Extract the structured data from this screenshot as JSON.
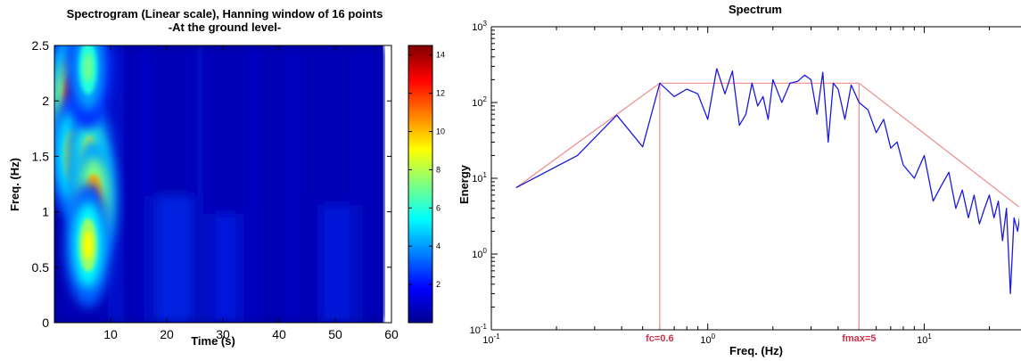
{
  "chart_data": [
    {
      "type": "heatmap",
      "title": "Spectrogram (Linear scale), Hanning window of 16 points",
      "subtitle": "-At the ground level-",
      "xlabel": "Time (s)",
      "ylabel": "Freq. (Hz)",
      "xlim": [
        0,
        60
      ],
      "ylim": [
        0,
        2.5
      ],
      "data_time_range": [
        1.5,
        58.5
      ],
      "x_ticks": [
        "10",
        "20",
        "30",
        "40",
        "50",
        "60"
      ],
      "x_tick_values": [
        10,
        20,
        30,
        40,
        50,
        60
      ],
      "y_ticks": [
        "0",
        "0.5",
        "1",
        "1.5",
        "2",
        "2.5"
      ],
      "y_tick_values": [
        0,
        0.5,
        1,
        1.5,
        2,
        2.5
      ],
      "colorbar": {
        "colormap": "jet",
        "range": [
          0,
          14.5
        ],
        "ticks": [
          "2",
          "4",
          "6",
          "8",
          "10",
          "12",
          "14"
        ],
        "tick_values": [
          2,
          4,
          6,
          8,
          10,
          12,
          14
        ]
      },
      "hotspots": [
        {
          "t": 2.5,
          "f": 2.2,
          "value": 6
        },
        {
          "t": 3.2,
          "f": 2.0,
          "value": 13.5
        },
        {
          "t": 3.2,
          "f": 1.5,
          "value": 9
        },
        {
          "t": 6.3,
          "f": 1.45,
          "value": 10
        },
        {
          "t": 7.0,
          "f": 1.1,
          "value": 12
        },
        {
          "t": 6.0,
          "f": 0.7,
          "value": 9
        },
        {
          "t": 6.0,
          "f": 2.3,
          "value": 7
        }
      ]
    },
    {
      "type": "line",
      "title": "Spectrum",
      "xlabel": "Freq. (Hz)",
      "ylabel": "Energy",
      "x_scale": "log",
      "y_scale": "log",
      "xlim": [
        0.1,
        28
      ],
      "ylim": [
        0.1,
        1000
      ],
      "x_ticks": [
        {
          "base": "10",
          "exp": "-1"
        },
        {
          "base": "10",
          "exp": "0"
        },
        {
          "base": "10",
          "exp": "1"
        }
      ],
      "x_tick_values": [
        0.1,
        1,
        10
      ],
      "y_ticks": [
        {
          "base": "10",
          "exp": "-1"
        },
        {
          "base": "10",
          "exp": "0"
        },
        {
          "base": "10",
          "exp": "1"
        },
        {
          "base": "10",
          "exp": "2"
        },
        {
          "base": "10",
          "exp": "3"
        }
      ],
      "y_tick_values": [
        0.1,
        1,
        10,
        100,
        1000
      ],
      "colors": {
        "spectrum": "#1a1adc",
        "fit": "#f08a8a"
      },
      "spectrum": {
        "x": [
          0.13,
          0.25,
          0.38,
          0.5,
          0.6,
          0.7,
          0.8,
          0.9,
          1.0,
          1.1,
          1.2,
          1.3,
          1.4,
          1.5,
          1.6,
          1.7,
          1.8,
          1.9,
          2.0,
          2.2,
          2.4,
          2.6,
          2.8,
          3.0,
          3.2,
          3.4,
          3.6,
          3.8,
          4.0,
          4.3,
          4.6,
          5.0,
          5.5,
          6.0,
          6.5,
          7.0,
          7.5,
          8.0,
          9.0,
          10.0,
          11.0,
          12.0,
          13.0,
          14.0,
          15.0,
          16.0,
          17.0,
          18.0,
          19.0,
          20.0,
          21.0,
          22.0,
          23.0,
          24.0,
          25.0,
          26.0,
          27.0,
          28.0
        ],
        "y": [
          7.5,
          20,
          68,
          26,
          180,
          120,
          150,
          130,
          60,
          280,
          130,
          260,
          50,
          70,
          180,
          90,
          120,
          60,
          200,
          100,
          180,
          190,
          230,
          200,
          70,
          250,
          30,
          180,
          150,
          60,
          170,
          100,
          80,
          40,
          60,
          25,
          30,
          15,
          10,
          20,
          5,
          8,
          12,
          4,
          7,
          3,
          6,
          2.5,
          4,
          6,
          3,
          5,
          1.5,
          4,
          0.3,
          3,
          2,
          4
        ]
      },
      "fit_curve": {
        "x": [
          0.13,
          0.6,
          5.0,
          28.0
        ],
        "y": [
          7.5,
          180,
          180,
          4
        ]
      },
      "markers": [
        {
          "label": "fc=0.6",
          "x": 0.6
        },
        {
          "label": "fmax=5",
          "x": 5
        }
      ]
    }
  ]
}
